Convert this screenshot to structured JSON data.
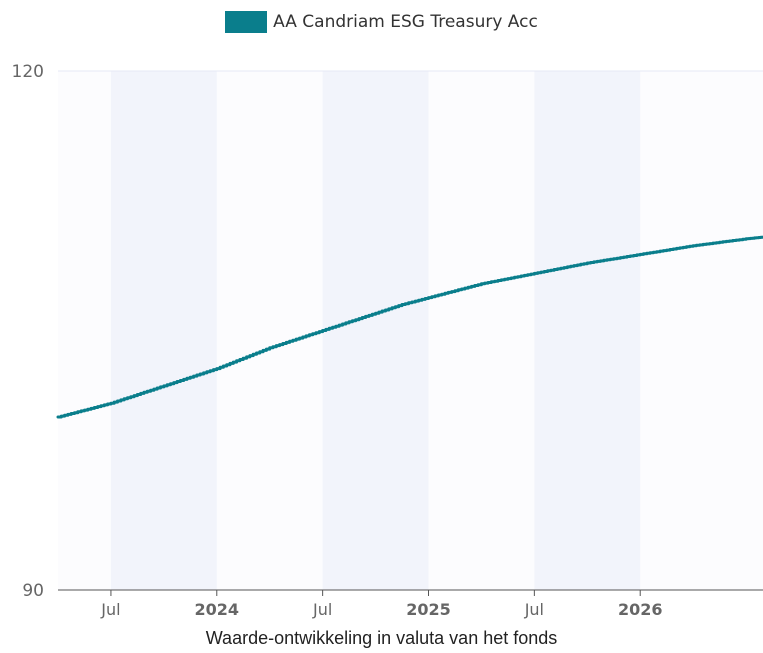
{
  "colors": {
    "series": "#0a7e8c",
    "band": "#f2f4fb",
    "background": "#fcfcfe",
    "axis_text": "#666666",
    "grid": "#e6e9f5"
  },
  "chart_data": {
    "type": "line",
    "title": "",
    "xlabel": "Waarde-ontwikkeling in valuta van het fonds",
    "ylabel": "",
    "legend": "top-center",
    "grid": true,
    "xlim": [
      2023.25,
      2026.58
    ],
    "ylim": [
      90,
      120
    ],
    "y_ticks": [
      "90",
      "120"
    ],
    "x_ticks": [
      {
        "x": 2023.5,
        "label": "Jul",
        "bold": false
      },
      {
        "x": 2024.0,
        "label": "2024",
        "bold": true
      },
      {
        "x": 2024.5,
        "label": "Jul",
        "bold": false
      },
      {
        "x": 2025.0,
        "label": "2025",
        "bold": true
      },
      {
        "x": 2025.5,
        "label": "Jul",
        "bold": false
      },
      {
        "x": 2026.0,
        "label": "2026",
        "bold": true
      }
    ],
    "bands": [
      [
        2023.5,
        2024.0
      ],
      [
        2024.5,
        2025.0
      ],
      [
        2025.5,
        2026.0
      ]
    ],
    "series": [
      {
        "name": "AA Candriam ESG Treasury Acc",
        "x": [
          2023.25,
          2023.375,
          2023.5,
          2023.625,
          2023.75,
          2023.875,
          2024.0,
          2024.125,
          2024.25,
          2024.375,
          2024.5,
          2024.625,
          2024.75,
          2024.875,
          2025.0,
          2025.125,
          2025.25,
          2025.375,
          2025.5,
          2025.625,
          2025.75,
          2025.875,
          2026.0,
          2026.125,
          2026.25,
          2026.375,
          2026.5,
          2026.58
        ],
        "values": [
          100.0,
          100.4,
          100.8,
          101.3,
          101.8,
          102.3,
          102.8,
          103.4,
          104.0,
          104.5,
          105.0,
          105.5,
          106.0,
          106.5,
          106.9,
          107.3,
          107.7,
          108.0,
          108.3,
          108.6,
          108.9,
          109.15,
          109.4,
          109.65,
          109.9,
          110.1,
          110.3,
          110.4
        ]
      }
    ]
  }
}
